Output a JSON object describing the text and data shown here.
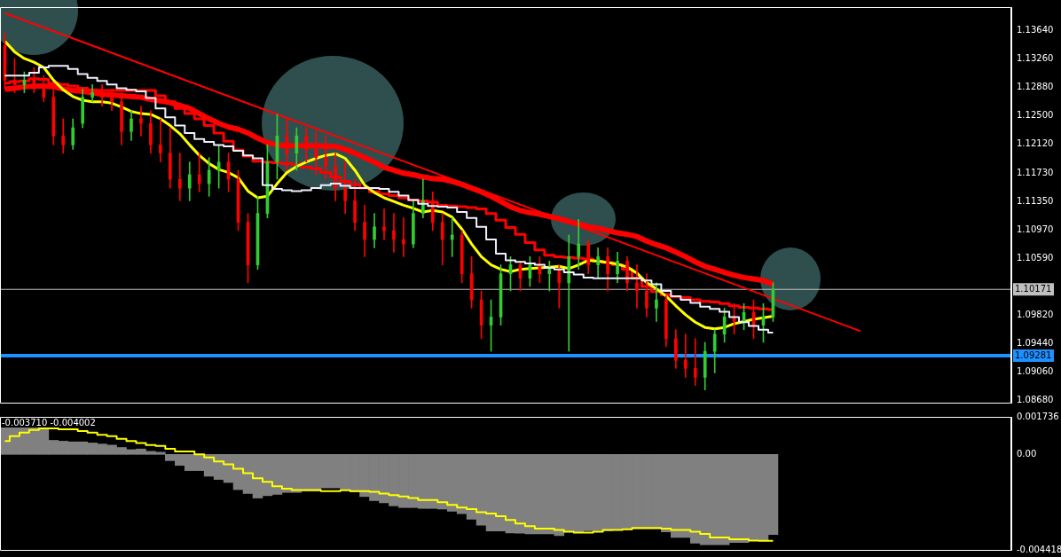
{
  "chart_data": [
    {
      "type": "candlestick",
      "categories": [
        null,
        null,
        null,
        null,
        null,
        null,
        null,
        null,
        null,
        null,
        null,
        null,
        null,
        null,
        null,
        null,
        null,
        null,
        null,
        null,
        null,
        null,
        null,
        null,
        null,
        null,
        null,
        null,
        null,
        null,
        null,
        null,
        null,
        null,
        null,
        null,
        null,
        null,
        null,
        null,
        null,
        null,
        null,
        null,
        null,
        null,
        null,
        null,
        null,
        null,
        null,
        null,
        null,
        null,
        null,
        null,
        null,
        null,
        null,
        null,
        null,
        null,
        null,
        null,
        null,
        null,
        null,
        null,
        null,
        null,
        null,
        null,
        null,
        null,
        null,
        null,
        null,
        null,
        null,
        null,
        null,
        null,
        null,
        null,
        null,
        null,
        null,
        null,
        null,
        null,
        null,
        null,
        null,
        null,
        null,
        null,
        null,
        null,
        null,
        null,
        null,
        null,
        null,
        null
      ],
      "ohlc": [
        [
          1.1344,
          1.1361,
          1.1286,
          1.1298
        ],
        [
          1.1298,
          1.1327,
          1.1281,
          1.1292
        ],
        [
          1.1292,
          1.1309,
          1.1281,
          1.1298
        ],
        [
          1.1298,
          1.1315,
          1.1281,
          1.1286
        ],
        [
          1.1286,
          1.1304,
          1.1269,
          1.1275
        ],
        [
          1.1275,
          1.1286,
          1.1211,
          1.1223
        ],
        [
          1.1223,
          1.1246,
          1.12,
          1.1211
        ],
        [
          1.1211,
          1.1246,
          1.1205,
          1.1234
        ],
        [
          1.124,
          1.1286,
          1.1234,
          1.1275
        ],
        [
          1.1275,
          1.1292,
          1.1269,
          1.1281
        ],
        [
          1.1281,
          1.1292,
          1.1263,
          1.1275
        ],
        [
          1.1275,
          1.1286,
          1.1257,
          1.1269
        ],
        [
          1.1269,
          1.1281,
          1.1211,
          1.1229
        ],
        [
          1.1229,
          1.1257,
          1.1217,
          1.1246
        ],
        [
          1.1246,
          1.1263,
          1.1223,
          1.124
        ],
        [
          1.124,
          1.1257,
          1.12,
          1.1211
        ],
        [
          1.1211,
          1.1246,
          1.1188,
          1.12
        ],
        [
          1.12,
          1.1234,
          1.1153,
          1.1165
        ],
        [
          1.1165,
          1.12,
          1.1136,
          1.1153
        ],
        [
          1.1153,
          1.1188,
          1.1136,
          1.1171
        ],
        [
          1.1171,
          1.12,
          1.1148,
          1.1159
        ],
        [
          1.1159,
          1.1194,
          1.1142,
          1.1177
        ],
        [
          1.1177,
          1.1211,
          1.1153,
          1.1188
        ],
        [
          1.1188,
          1.12,
          1.1148,
          1.1165
        ],
        [
          1.1165,
          1.1177,
          1.1096,
          1.1107
        ],
        [
          1.1107,
          1.1119,
          1.1026,
          1.105
        ],
        [
          1.105,
          1.1142,
          1.1044,
          1.1119
        ],
        [
          1.1119,
          1.1211,
          1.1113,
          1.1188
        ],
        [
          1.1188,
          1.1252,
          1.1165,
          1.1223
        ],
        [
          1.1223,
          1.1246,
          1.1177,
          1.12
        ],
        [
          1.12,
          1.1234,
          1.1177,
          1.1223
        ],
        [
          1.1223,
          1.1234,
          1.1188,
          1.1205
        ],
        [
          1.1205,
          1.1229,
          1.1171,
          1.1194
        ],
        [
          1.1194,
          1.1223,
          1.1165,
          1.1182
        ],
        [
          1.1182,
          1.12,
          1.1136,
          1.1153
        ],
        [
          1.1153,
          1.1188,
          1.1119,
          1.1136
        ],
        [
          1.1136,
          1.1165,
          1.1096,
          1.1107
        ],
        [
          1.1107,
          1.113,
          1.1061,
          1.1084
        ],
        [
          1.1084,
          1.1119,
          1.1073,
          1.1101
        ],
        [
          1.1101,
          1.1125,
          1.1084,
          1.1096
        ],
        [
          1.1096,
          1.1119,
          1.1067,
          1.1084
        ],
        [
          1.1084,
          1.1113,
          1.1061,
          1.1078
        ],
        [
          1.1078,
          1.1136,
          1.1073,
          1.1119
        ],
        [
          1.1119,
          1.1165,
          1.1113,
          1.1136
        ],
        [
          1.1136,
          1.1148,
          1.1096,
          1.1107
        ],
        [
          1.1107,
          1.1119,
          1.105,
          1.1084
        ],
        [
          1.1084,
          1.1113,
          1.1061,
          1.109
        ],
        [
          1.109,
          1.1096,
          1.1026,
          1.1038
        ],
        [
          1.1038,
          1.1061,
          1.0992,
          1.1003
        ],
        [
          1.1003,
          1.1015,
          1.0951,
          1.0969
        ],
        [
          1.0969,
          1.1003,
          1.0934,
          1.098
        ],
        [
          1.098,
          1.105,
          1.0969,
          1.1038
        ],
        [
          1.1038,
          1.1061,
          1.1015,
          1.105
        ],
        [
          1.105,
          1.1055,
          1.1015,
          1.1032
        ],
        [
          1.1032,
          1.1061,
          1.1021,
          1.105
        ],
        [
          1.105,
          1.1061,
          1.1026,
          1.1038
        ],
        [
          1.1038,
          1.1055,
          1.1015,
          1.1044
        ],
        [
          1.1044,
          1.105,
          1.0992,
          1.1026
        ],
        [
          1.1026,
          1.109,
          1.0934,
          1.1061
        ],
        [
          1.1061,
          1.1111,
          1.1044,
          1.1078
        ],
        [
          1.1078,
          1.1084,
          1.1038,
          1.105
        ],
        [
          1.105,
          1.1073,
          1.1032,
          1.1061
        ],
        [
          1.1061,
          1.1073,
          1.1015,
          1.1038
        ],
        [
          1.1038,
          1.1067,
          1.1026,
          1.1055
        ],
        [
          1.1055,
          1.1061,
          1.1015,
          1.1026
        ],
        [
          1.1026,
          1.105,
          1.0992,
          1.1015
        ],
        [
          1.1015,
          1.1038,
          1.098,
          1.0992
        ],
        [
          1.0992,
          1.1026,
          1.0974,
          1.1003
        ],
        [
          1.1003,
          1.1009,
          1.094,
          1.0951
        ],
        [
          1.0951,
          1.0963,
          1.0911,
          1.0922
        ],
        [
          1.0922,
          1.0957,
          1.0899,
          1.0911
        ],
        [
          1.0911,
          1.0951,
          1.0888,
          1.0899
        ],
        [
          1.0899,
          1.0946,
          1.0882,
          1.0934
        ],
        [
          1.0934,
          1.0963,
          1.0905,
          1.0957
        ],
        [
          1.0957,
          1.0992,
          1.0946,
          1.098
        ],
        [
          1.098,
          1.0998,
          1.0957,
          1.0974
        ],
        [
          1.0974,
          1.0998,
          1.0963,
          1.0986
        ],
        [
          1.0986,
          1.1003,
          1.0951,
          1.0969
        ],
        [
          1.0969,
          1.0998,
          1.0946,
          1.098
        ],
        [
          1.098,
          1.1026,
          1.0974,
          1.10171
        ],
        null,
        null,
        null,
        null,
        null,
        null,
        null,
        null,
        null,
        null,
        null,
        null,
        null,
        null,
        null,
        null,
        null,
        null,
        null,
        null,
        null,
        null,
        null,
        null
      ],
      "colors": [
        "#ff0000",
        "#ff0000",
        "#32cd32",
        "#ff0000",
        "#ff0000",
        "#ff0000",
        "#ff0000",
        "#32cd32",
        "#32cd32",
        "#32cd32",
        "#ff0000",
        "#ff0000",
        "#ff0000",
        "#32cd32",
        "#ff0000",
        "#ff0000",
        "#ff0000",
        "#ff0000",
        "#ff0000",
        "#32cd32",
        "#ff0000",
        "#32cd32",
        "#32cd32",
        "#ff0000",
        "#ff0000",
        "#ff0000",
        "#32cd32",
        "#32cd32",
        "#32cd32",
        "#ff0000",
        "#32cd32",
        "#ff0000",
        "#ff0000",
        "#ff0000",
        "#ff0000",
        "#ff0000",
        "#ff0000",
        "#ff0000",
        "#32cd32",
        "#ff0000",
        "#ff0000",
        "#ff0000",
        "#32cd32",
        "#32cd32",
        "#ff0000",
        "#ff0000",
        "#32cd32",
        "#ff0000",
        "#ff0000",
        "#ff0000",
        "#32cd32",
        "#32cd32",
        "#32cd32",
        "#ff0000",
        "#32cd32",
        "#ff0000",
        "#32cd32",
        "#ff0000",
        "#32cd32",
        "#32cd32",
        "#ff0000",
        "#32cd32",
        "#ff0000",
        "#32cd32",
        "#ff0000",
        "#ff0000",
        "#ff0000",
        "#32cd32",
        "#ff0000",
        "#ff0000",
        "#ff0000",
        "#ff0000",
        "#32cd32",
        "#32cd32",
        "#32cd32",
        "#ff0000",
        "#32cd32",
        "#ff0000",
        "#32cd32",
        "#32cd32",
        null,
        null,
        null,
        null,
        null,
        null,
        null,
        null,
        null,
        null,
        null,
        null,
        null,
        null,
        null,
        null,
        null,
        null,
        null,
        null,
        null,
        null,
        null,
        null
      ],
      "series": [
        {
          "type": "line",
          "color": "#ffff00",
          "values": [
            1.135,
            1.1336,
            1.1327,
            1.1322,
            1.1315,
            1.1298,
            1.1285,
            1.1276,
            1.1271,
            1.1269,
            1.1269,
            1.1267,
            1.1262,
            1.1256,
            1.1253,
            1.1252,
            1.1246,
            1.1237,
            1.1226,
            1.1211,
            1.1197,
            1.1186,
            1.1178,
            1.1174,
            1.1167,
            1.1149,
            1.114,
            1.1142,
            1.1159,
            1.1174,
            1.1182,
            1.1188,
            1.1193,
            1.1197,
            1.1199,
            1.1193,
            1.1177,
            1.1157,
            1.1147,
            1.114,
            1.1135,
            1.113,
            1.1126,
            1.1121,
            1.1123,
            1.1121,
            1.1114,
            1.1098,
            1.1078,
            1.1061,
            1.105,
            1.1044,
            1.1041,
            1.1044,
            1.1045,
            1.1046,
            1.1047,
            1.1048,
            1.1045,
            1.105,
            1.1056,
            1.1055,
            1.1053,
            1.1051,
            1.1047,
            1.1039,
            1.1026,
            1.1018,
            1.1008,
            1.0995,
            1.0983,
            1.0973,
            1.0966,
            1.0964,
            1.0966,
            1.0971,
            1.0974,
            1.0977,
            1.0979,
            1.0981,
            null,
            null,
            null,
            null,
            null,
            null,
            null,
            null,
            null,
            null,
            null,
            null,
            null,
            null,
            null,
            null,
            null,
            null,
            null,
            null,
            null,
            null,
            null,
            null
          ]
        },
        {
          "type": "step",
          "color": "#f0f0ff",
          "values": [
            1.1304,
            1.1304,
            1.1304,
            1.1308,
            1.1315,
            1.1317,
            1.1317,
            1.1313,
            1.1306,
            1.1301,
            1.1297,
            1.1292,
            1.1287,
            1.1285,
            1.1283,
            1.1274,
            1.126,
            1.1248,
            1.1237,
            1.1227,
            1.1219,
            1.1215,
            1.1211,
            1.1209,
            1.1203,
            1.1197,
            1.1193,
            1.1157,
            1.1152,
            1.115,
            1.1149,
            1.115,
            1.1153,
            1.1157,
            1.1159,
            1.1156,
            1.1153,
            1.1153,
            1.1153,
            1.1152,
            1.1148,
            1.1143,
            1.1137,
            1.1132,
            1.1129,
            1.1128,
            1.1127,
            1.1121,
            1.1113,
            1.1101,
            1.1084,
            1.1065,
            1.1056,
            1.1054,
            1.1052,
            1.105,
            1.1046,
            1.1044,
            1.104,
            1.1037,
            1.1033,
            1.1032,
            1.1032,
            1.1032,
            1.1032,
            1.1032,
            1.1029,
            1.1024,
            1.1015,
            1.1008,
            1.1003,
            1.0999,
            1.0994,
            1.0991,
            1.0987,
            1.098,
            1.0973,
            1.0968,
            1.0963,
            1.0959,
            null,
            null,
            null,
            null,
            null,
            null,
            null,
            null,
            null,
            null,
            null,
            null,
            null,
            null,
            null,
            null,
            null,
            null,
            null,
            null,
            null,
            null,
            null,
            null
          ]
        },
        {
          "type": "step",
          "color": "#ff0000",
          "values": [
            1.1294,
            1.1296,
            1.1297,
            1.13,
            1.1299,
            1.1294,
            1.1292,
            1.129,
            1.1287,
            1.1285,
            1.1284,
            1.1284,
            1.1284,
            1.1284,
            1.1284,
            1.1284,
            1.1277,
            1.1269,
            1.126,
            1.1253,
            1.1246,
            1.1237,
            1.1227,
            1.1216,
            1.1204,
            1.1196,
            1.1189,
            1.1188,
            1.1187,
            1.1186,
            1.1185,
            1.1181,
            1.1179,
            1.1174,
            1.1168,
            1.1162,
            1.1158,
            1.1153,
            1.1148,
            1.1145,
            1.1143,
            1.114,
            1.1137,
            1.1136,
            1.1134,
            1.113,
            1.1129,
            1.1128,
            1.1127,
            1.1125,
            1.1119,
            1.111,
            1.11,
            1.1091,
            1.108,
            1.107,
            1.1063,
            1.1061,
            1.106,
            1.1059,
            1.1058,
            1.1055,
            1.1053,
            1.105,
            1.1044,
            1.1032,
            1.1021,
            1.1014,
            1.101,
            1.1007,
            1.1006,
            1.1003,
            1.1001,
            1.1,
            1.0998,
            1.0995,
            1.0993,
            1.0992,
            1.0991,
            1.099,
            null,
            null,
            null,
            null,
            null,
            null,
            null,
            null,
            null,
            null,
            null,
            null,
            null,
            null,
            null,
            null,
            null,
            null,
            null,
            null,
            null,
            null,
            null,
            null
          ]
        },
        {
          "type": "line",
          "color": "#ff0000",
          "values": [
            1.1286,
            1.1287,
            1.1289,
            1.129,
            1.129,
            1.1289,
            1.1286,
            1.1284,
            1.1283,
            1.1281,
            1.1279,
            1.1278,
            1.1277,
            1.1276,
            1.1275,
            1.1272,
            1.127,
            1.1268,
            1.1264,
            1.126,
            1.1253,
            1.1246,
            1.124,
            1.1235,
            1.1232,
            1.1227,
            1.122,
            1.1214,
            1.1211,
            1.121,
            1.121,
            1.121,
            1.121,
            1.1209,
            1.1209,
            1.1205,
            1.12,
            1.1194,
            1.1188,
            1.1181,
            1.1177,
            1.1173,
            1.1171,
            1.1168,
            1.1166,
            1.1165,
            1.1162,
            1.1158,
            1.1153,
            1.1148,
            1.1142,
            1.1135,
            1.1128,
            1.1123,
            1.112,
            1.1118,
            1.1115,
            1.1112,
            1.1108,
            1.1105,
            1.1101,
            1.1099,
            1.1096,
            1.1093,
            1.1091,
            1.1088,
            1.1082,
            1.1077,
            1.1073,
            1.1067,
            1.1061,
            1.1054,
            1.1048,
            1.1044,
            1.104,
            1.1036,
            1.1033,
            1.1031,
            1.1029,
            1.1024,
            null,
            null,
            null,
            null,
            null,
            null,
            null,
            null,
            null,
            null,
            null,
            null,
            null,
            null,
            null,
            null,
            null,
            null,
            null,
            null,
            null,
            null,
            null,
            null
          ]
        },
        {
          "type": "line",
          "color": "#ff0000",
          "values": [
            1.1388,
            null,
            null,
            null,
            null,
            null,
            null,
            null,
            null,
            null,
            null,
            null,
            null,
            null,
            null,
            null,
            null,
            null,
            null,
            null,
            null,
            null,
            null,
            null,
            null,
            null,
            null,
            null,
            null,
            null,
            null,
            null,
            null,
            null,
            null,
            null,
            null,
            null,
            null,
            null,
            null,
            null,
            null,
            null,
            null,
            null,
            null,
            null,
            null,
            null,
            null,
            null,
            null,
            null,
            null,
            null,
            null,
            null,
            null,
            null,
            null,
            null,
            null,
            null,
            null,
            null,
            null,
            null,
            null,
            null,
            null,
            null,
            null,
            null,
            null,
            null,
            null,
            null,
            null,
            null,
            null,
            null,
            null,
            null,
            null,
            null,
            null,
            null,
            1.0961,
            null,
            null,
            null,
            null,
            null,
            null,
            null,
            null,
            null,
            null,
            null,
            null,
            null,
            null,
            null
          ]
        }
      ],
      "ylim": [
        1.0865,
        1.1396
      ],
      "yticks": [
        {
          "value": 1.1364,
          "label": "1.13640"
        },
        {
          "value": 1.1326,
          "label": "1.13260"
        },
        {
          "value": 1.1288,
          "label": "1.12880"
        },
        {
          "value": 1.125,
          "label": "1.12500"
        },
        {
          "value": 1.1212,
          "label": "1.12120"
        },
        {
          "value": 1.1173,
          "label": "1.11730"
        },
        {
          "value": 1.1135,
          "label": "1.11350"
        },
        {
          "value": 1.1097,
          "label": "1.10970"
        },
        {
          "value": 1.1059,
          "label": "1.10590"
        },
        {
          "value": 1.0982,
          "label": "1.09820"
        },
        {
          "value": 1.0944,
          "label": "1.09440"
        },
        {
          "value": 1.0906,
          "label": "1.09060"
        },
        {
          "value": 1.0868,
          "label": "1.08680"
        }
      ],
      "ref_lines": [
        {
          "axis": "y",
          "value": 1.10171,
          "label": "1.10171",
          "color": "#c0c0c0"
        },
        {
          "axis": "y",
          "value": 1.09281,
          "label": "1.09281",
          "color": "#1e90ff"
        }
      ]
    },
    {
      "type": "bar",
      "categories": [
        null,
        null,
        null,
        null,
        null,
        null,
        null,
        null,
        null,
        null,
        null,
        null,
        null,
        null,
        null,
        null,
        null,
        null,
        null,
        null,
        null,
        null,
        null,
        null,
        null,
        null,
        null,
        null,
        null,
        null,
        null,
        null,
        null,
        null,
        null,
        null,
        null,
        null,
        null,
        null,
        null,
        null,
        null,
        null,
        null,
        null,
        null,
        null,
        null,
        null,
        null,
        null,
        null,
        null,
        null,
        null,
        null,
        null,
        null,
        null,
        null,
        null,
        null,
        null,
        null,
        null,
        null,
        null,
        null,
        null,
        null,
        null,
        null,
        null,
        null,
        null,
        null,
        null,
        null,
        null,
        null,
        null,
        null,
        null,
        null,
        null,
        null,
        null,
        null,
        null,
        null,
        null,
        null,
        null,
        null,
        null,
        null,
        null,
        null,
        null,
        null,
        null,
        null,
        null
      ],
      "series": [
        {
          "type": "bar",
          "color": "#808080",
          "values": [
            0.00123,
            0.00123,
            0.00123,
            0.00123,
            0.00123,
            0.00065,
            0.00061,
            0.00058,
            0.00058,
            0.00053,
            0.00048,
            0.00043,
            0.00032,
            0.00022,
            0.00025,
            0.00014,
            0.0001,
            -0.00029,
            -0.00051,
            -0.00075,
            -0.00075,
            -0.00101,
            -0.00116,
            -0.0013,
            -0.00163,
            -0.00181,
            -0.00202,
            -0.00191,
            -0.00185,
            -0.00176,
            -0.00176,
            -0.0017,
            -0.0017,
            -0.00155,
            -0.00155,
            -0.00162,
            -0.00173,
            -0.00195,
            -0.00214,
            -0.00224,
            -0.00238,
            -0.00246,
            -0.00246,
            -0.0025,
            -0.0025,
            -0.00253,
            -0.00263,
            -0.00274,
            -0.003,
            -0.00328,
            -0.00354,
            -0.00354,
            -0.00364,
            -0.00365,
            -0.00368,
            -0.00368,
            -0.00368,
            -0.00376,
            -0.00358,
            -0.00358,
            -0.00353,
            -0.00353,
            -0.00353,
            -0.0035,
            -0.00348,
            -0.00345,
            -0.00345,
            -0.00345,
            -0.00358,
            -0.00384,
            -0.00384,
            -0.00411,
            -0.00418,
            -0.00418,
            -0.00418,
            -0.00408,
            -0.00408,
            -0.00399,
            -0.00396,
            -0.00371,
            null,
            null,
            null,
            null,
            null,
            null,
            null,
            null,
            null,
            null,
            null,
            null,
            null,
            null,
            null,
            null,
            null,
            null,
            null,
            null,
            null,
            null,
            null,
            null
          ]
        },
        {
          "type": "step",
          "color": "#ffff00",
          "values": [
            0.00062,
            0.00084,
            0.00101,
            0.00113,
            0.0012,
            0.0012,
            0.00116,
            0.00116,
            0.00108,
            0.00101,
            0.00091,
            0.00084,
            0.00072,
            0.00062,
            0.00053,
            0.00043,
            0.00039,
            0.00026,
            0.00014,
            0.00014,
            0,
            -0.00014,
            -0.00033,
            -0.00046,
            -0.00066,
            -0.00087,
            -0.00111,
            -0.00127,
            -0.00147,
            -0.00159,
            -0.00165,
            -0.00165,
            -0.00165,
            -0.0017,
            -0.0017,
            -0.00166,
            -0.0017,
            -0.0017,
            -0.00173,
            -0.00181,
            -0.00188,
            -0.00195,
            -0.00202,
            -0.00211,
            -0.00211,
            -0.00221,
            -0.00234,
            -0.00246,
            -0.00253,
            -0.00267,
            -0.00274,
            -0.00286,
            -0.00303,
            -0.0032,
            -0.00332,
            -0.00343,
            -0.00343,
            -0.0035,
            -0.00358,
            -0.00362,
            -0.00362,
            -0.00358,
            -0.0035,
            -0.0035,
            -0.00346,
            -0.0034,
            -0.0034,
            -0.0034,
            -0.00343,
            -0.0035,
            -0.0035,
            -0.00358,
            -0.00368,
            -0.00384,
            -0.00384,
            -0.00393,
            -0.00393,
            -0.00399,
            -0.004,
            -0.004,
            null,
            null,
            null,
            null,
            null,
            null,
            null,
            null,
            null,
            null,
            null,
            null,
            null,
            null,
            null,
            null,
            null,
            null,
            null,
            null,
            null,
            null,
            null,
            null
          ]
        }
      ],
      "ylim": [
        -0.004418,
        0.001736
      ],
      "yticks": [
        0.001736,
        {
          "value": 0,
          "label": "0.00"
        },
        -0.004418
      ],
      "annotations": [
        "-0.003710 -0.004002"
      ]
    }
  ]
}
